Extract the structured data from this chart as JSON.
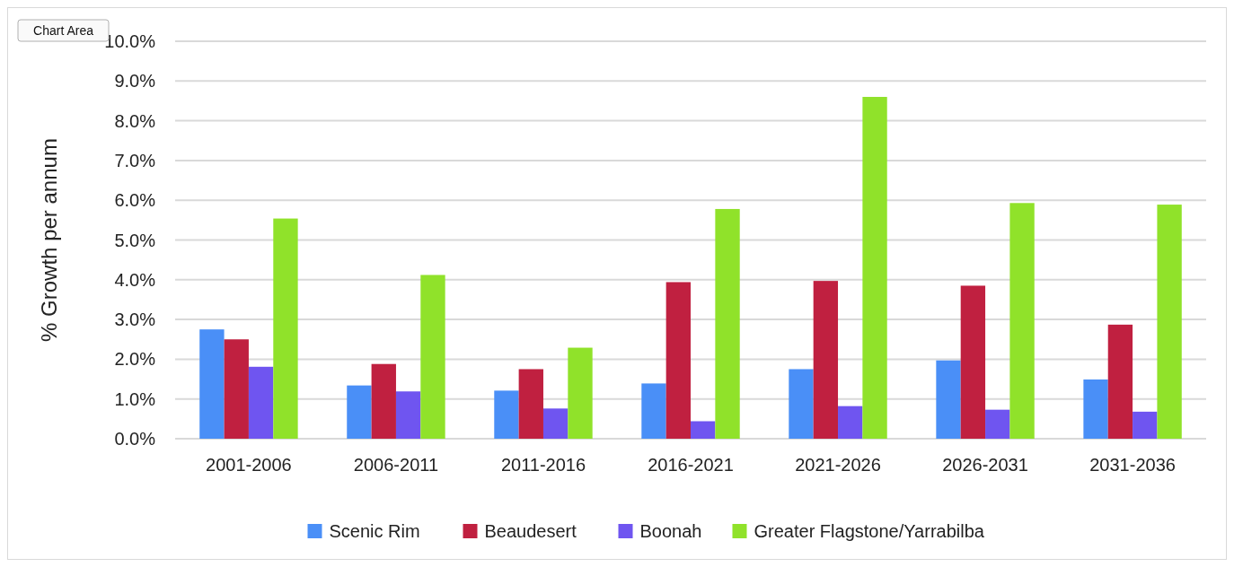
{
  "chart_data": {
    "type": "bar",
    "ylabel": "% Growth per annum",
    "categories": [
      "2001-2006",
      "2006-2011",
      "2011-2016",
      "2016-2021",
      "2021-2026",
      "2026-2031",
      "2031-2036"
    ],
    "series": [
      {
        "name": "Scenic Rim",
        "color": "#4a8ff7",
        "values": [
          2.75,
          1.34,
          1.21,
          1.39,
          1.75,
          1.97,
          1.49
        ]
      },
      {
        "name": "Beaudesert",
        "color": "#c02040",
        "values": [
          2.5,
          1.88,
          1.75,
          3.94,
          3.97,
          3.85,
          2.87
        ]
      },
      {
        "name": "Boonah",
        "color": "#6f55f0",
        "values": [
          1.81,
          1.19,
          0.76,
          0.44,
          0.82,
          0.73,
          0.68
        ]
      },
      {
        "name": "Greater Flagstone/Yarrabilba",
        "color": "#90e22a",
        "values": [
          5.54,
          4.12,
          2.29,
          5.78,
          8.6,
          5.93,
          5.89
        ]
      }
    ],
    "ylim": [
      0,
      10
    ],
    "yticks": [
      {
        "value": 0,
        "label": "0.0%"
      },
      {
        "value": 1,
        "label": "1.0%"
      },
      {
        "value": 2,
        "label": "2.0%"
      },
      {
        "value": 3,
        "label": "3.0%"
      },
      {
        "value": 4,
        "label": "4.0%"
      },
      {
        "value": 5,
        "label": "5.0%"
      },
      {
        "value": 6,
        "label": "6.0%"
      },
      {
        "value": 7,
        "label": "7.0%"
      },
      {
        "value": 8,
        "label": "8.0%"
      },
      {
        "value": 9,
        "label": "9.0%"
      },
      {
        "value": 10,
        "label": "10.0%"
      }
    ],
    "grid": "y",
    "legend": "bottom",
    "annotations": [
      "Chart Area"
    ]
  }
}
